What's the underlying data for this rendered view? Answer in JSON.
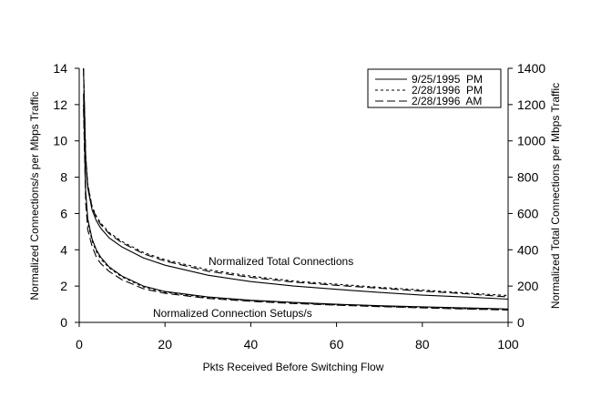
{
  "chart_data": {
    "type": "line",
    "xlabel": "Pkts Received Before Switching Flow",
    "ylabel_left": "Normalized Connections/s per Mbps Traffic",
    "ylabel_right": "Normalized Total Connections per Mbps Traffic",
    "xlim": [
      0,
      100
    ],
    "ylim_left": [
      0,
      14
    ],
    "ylim_right": [
      0,
      1400
    ],
    "xticks": [
      "0",
      "20",
      "40",
      "60",
      "80",
      "100"
    ],
    "yticks_left": [
      "0",
      "2",
      "4",
      "6",
      "8",
      "10",
      "12",
      "14"
    ],
    "yticks_right": [
      "0",
      "200",
      "400",
      "600",
      "800",
      "1000",
      "1200",
      "1400"
    ],
    "grid": false,
    "legend_position": "top-right",
    "legend": [
      {
        "label": "9/25/1995  PM",
        "dash": "solid"
      },
      {
        "label": "2/28/1996  PM",
        "dash": "dashed"
      },
      {
        "label": "2/28/1996  AM",
        "dash": "longdash"
      }
    ],
    "annotations": [
      {
        "text": "Normalized Total Connections",
        "x": 30,
        "y": 3.2
      },
      {
        "text": "Normalized Connection Setups/s",
        "x": 17,
        "y": 0.35
      }
    ],
    "x": [
      1,
      1.5,
      2,
      3,
      4,
      5,
      7,
      10,
      15,
      20,
      30,
      40,
      50,
      60,
      70,
      80,
      90,
      100
    ],
    "series_groups": [
      {
        "group": "Normalized Total Connections",
        "axis": "right",
        "series": [
          {
            "legend_index": 0,
            "values": [
              1400,
              900,
              740,
              620,
              560,
              520,
              465,
              415,
              355,
              315,
              260,
              225,
              200,
              182,
              165,
              150,
              140,
              128
            ]
          },
          {
            "legend_index": 1,
            "values": [
              1400,
              920,
              760,
              640,
              585,
              548,
              495,
              445,
              385,
              345,
              290,
              255,
              228,
              210,
              193,
              178,
              162,
              148
            ]
          },
          {
            "legend_index": 2,
            "values": [
              1400,
              910,
              755,
              635,
              578,
              540,
              488,
              438,
              378,
              338,
              282,
              248,
              222,
              204,
              188,
              172,
              158,
              140
            ]
          }
        ]
      },
      {
        "group": "Normalized Connection Setups/s",
        "axis": "left",
        "series": [
          {
            "legend_index": 0,
            "values": [
              12.6,
              7.2,
              5.7,
              4.6,
              4.0,
              3.6,
              3.05,
              2.55,
              2.0,
              1.7,
              1.4,
              1.22,
              1.1,
              1.0,
              0.92,
              0.86,
              0.8,
              0.74
            ]
          },
          {
            "legend_index": 1,
            "values": [
              12.0,
              7.0,
              5.5,
              4.5,
              3.9,
              3.5,
              3.0,
              2.5,
              1.95,
              1.66,
              1.36,
              1.2,
              1.07,
              0.97,
              0.89,
              0.82,
              0.76,
              0.7
            ]
          },
          {
            "legend_index": 2,
            "values": [
              11.8,
              6.6,
              5.1,
              4.2,
              3.6,
              3.25,
              2.8,
              2.35,
              1.85,
              1.6,
              1.32,
              1.16,
              1.04,
              0.95,
              0.87,
              0.8,
              0.74,
              0.68
            ]
          }
        ]
      }
    ]
  }
}
